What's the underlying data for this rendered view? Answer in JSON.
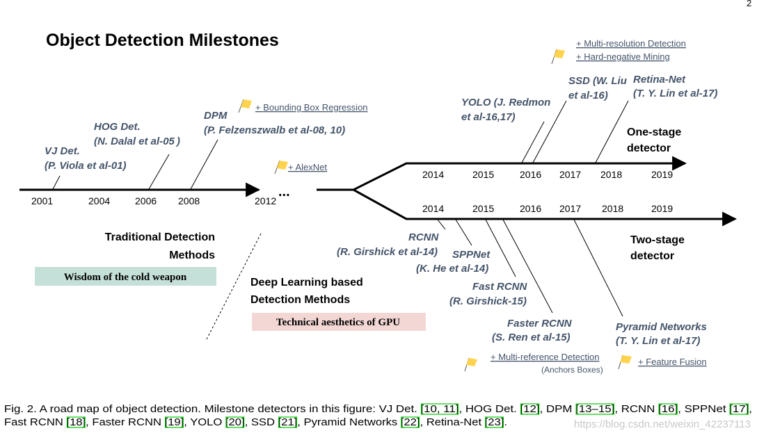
{
  "page_number": "2",
  "title": "Object Detection Milestones",
  "timeline": {
    "traditional_years": [
      "2001",
      "2004",
      "2006",
      "2008",
      "2012"
    ],
    "ellipsis": "...",
    "one_stage_years": [
      "2014",
      "2015",
      "2016",
      "2017",
      "2018",
      "2019"
    ],
    "two_stage_years": [
      "2014",
      "2015",
      "2016",
      "2017",
      "2018",
      "2019"
    ]
  },
  "traditional": {
    "vj_name": "VJ Det.",
    "vj_author": "(P. Viola et al-01)",
    "hog_name": "HOG Det.",
    "hog_author": "(N. Dalal et al-05 )",
    "dpm_name": "DPM",
    "dpm_author": "(P. Felzenszwalb et al-08, 10)",
    "dpm_note": "+ Bounding Box Regression",
    "alexnet_note": "+ AlexNet",
    "section_title_line1": "Traditional Detection",
    "section_title_line2": "Methods",
    "tag": "Wisdom of the cold weapon"
  },
  "deep": {
    "section_title_line1": "Deep Learning based",
    "section_title_line2": "Detection Methods",
    "tag": "Technical aesthetics of GPU"
  },
  "one_stage": {
    "label_line1": "One-stage",
    "label_line2": "detector",
    "yolo_line1": "YOLO (J. Redmon",
    "yolo_line2": "et al-16,17)",
    "ssd_line1": "SSD (W. Liu",
    "ssd_line2": "et al-16)",
    "retina_line1": "Retina-Net",
    "retina_line2": "(T. Y. Lin et al-17)",
    "note1": "+ Multi-resolution Detection",
    "note2": "+ Hard-negative Mining"
  },
  "two_stage": {
    "label_line1": "Two-stage",
    "label_line2": "detector",
    "rcnn_name": "RCNN",
    "rcnn_author": "(R. Girshick et al-14)",
    "sppnet_name": "SPPNet",
    "sppnet_author": "(K. He et al-14)",
    "fast_name": "Fast RCNN",
    "fast_author": "(R. Girshick-15)",
    "faster_name": "Faster RCNN",
    "faster_author": "(S. Ren et al-15)",
    "fpn_name": "Pyramid Networks",
    "fpn_author": "(T. Y. Lin et al-17)",
    "note_anchor_line1": "+ Multi-reference Detection",
    "note_anchor_line2": "(Anchors Boxes)",
    "note_fusion": "+ Feature Fusion"
  },
  "caption": {
    "line1_prefix": "Fig. 2.  A road map of object detection. Milestone detectors in this figure: VJ Det. ",
    "line1_rest": [
      {
        "t": "[10, 11]",
        "ref": true
      },
      {
        "t": ", HOG Det. ",
        "ref": false
      },
      {
        "t": "[12]",
        "ref": true
      },
      {
        "t": ", DPM ",
        "ref": false
      },
      {
        "t": "[13–15]",
        "ref": true
      },
      {
        "t": ", RCNN ",
        "ref": false
      },
      {
        "t": "[16]",
        "ref": true
      },
      {
        "t": ", SPPNet ",
        "ref": false
      },
      {
        "t": "[17]",
        "ref": true
      },
      {
        "t": ",",
        "ref": false
      }
    ],
    "line2": [
      {
        "t": "Fast RCNN ",
        "ref": false
      },
      {
        "t": "[18]",
        "ref": true
      },
      {
        "t": ", Faster RCNN ",
        "ref": false
      },
      {
        "t": "[19]",
        "ref": true
      },
      {
        "t": ", YOLO ",
        "ref": false
      },
      {
        "t": "[20]",
        "ref": true
      },
      {
        "t": ", SSD ",
        "ref": false
      },
      {
        "t": "[21]",
        "ref": true
      },
      {
        "t": ", Pyramid Networks ",
        "ref": false
      },
      {
        "t": "[22]",
        "ref": true
      },
      {
        "t": ", Retina-Net ",
        "ref": false
      },
      {
        "t": "[23]",
        "ref": true
      },
      {
        "t": ".",
        "ref": false
      }
    ]
  },
  "watermark": "https://blog.csdn.net/weixin_42237113",
  "colors": {
    "label_blue": "#44546a",
    "tag_green": "#c5e0d8",
    "tag_pink": "#f2d7d5",
    "flag_yellow": "#ffd34d",
    "ref_green": "#00cc00"
  }
}
